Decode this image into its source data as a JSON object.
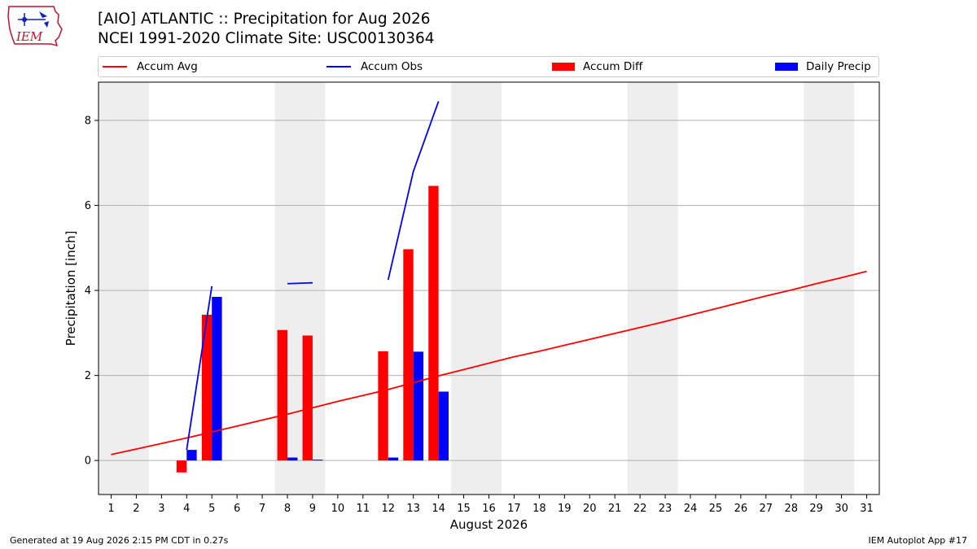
{
  "logo": {
    "text": "IEM"
  },
  "title_line1": "[AIO] ATLANTIC :: Precipitation for Aug 2026",
  "title_line2": "NCEI 1991-2020 Climate Site: USC00130364",
  "footer_left": "Generated at 19 Aug 2026 2:15 PM CDT in 0.27s",
  "footer_right": "IEM Autoplot App #17",
  "chart_data": {
    "type": "bar",
    "xlabel": "August 2026",
    "ylabel": "Precipitation [inch]",
    "xlim": [
      0.5,
      31.5
    ],
    "ylim": [
      -0.8,
      8.9
    ],
    "yticks": [
      0,
      2,
      4,
      6,
      8
    ],
    "x_ticks": [
      "1",
      "2",
      "3",
      "4",
      "5",
      "6",
      "7",
      "8",
      "9",
      "10",
      "11",
      "12",
      "13",
      "14",
      "15",
      "16",
      "17",
      "18",
      "19",
      "20",
      "21",
      "22",
      "23",
      "24",
      "25",
      "26",
      "27",
      "28",
      "29",
      "30",
      "31"
    ],
    "grid": "horizontal",
    "weekend_shading_days": [
      [
        1,
        2
      ],
      [
        8,
        9
      ],
      [
        15,
        16
      ],
      [
        22,
        23
      ],
      [
        29,
        30
      ]
    ],
    "legend_position": "top",
    "colors": {
      "accum_avg": "#ff0000",
      "accum_obs": "#0000ff",
      "accum_diff": "#ff0000",
      "daily_precip": "#0000ff",
      "weekend": "#eeeeee",
      "grid": "#b0b0b0"
    },
    "series": [
      {
        "name": "Accum Avg",
        "kind": "line",
        "x": [
          1,
          2,
          3,
          4,
          5,
          6,
          7,
          8,
          9,
          10,
          11,
          12,
          13,
          14,
          15,
          16,
          17,
          18,
          19,
          20,
          21,
          22,
          23,
          24,
          25,
          26,
          27,
          28,
          29,
          30,
          31
        ],
        "values": [
          0.14,
          0.27,
          0.4,
          0.53,
          0.67,
          0.81,
          0.95,
          1.09,
          1.24,
          1.39,
          1.53,
          1.67,
          1.83,
          1.99,
          2.14,
          2.29,
          2.44,
          2.57,
          2.71,
          2.85,
          2.99,
          3.13,
          3.27,
          3.42,
          3.57,
          3.72,
          3.87,
          4.01,
          4.16,
          4.3,
          4.45
        ]
      },
      {
        "name": "Accum Obs",
        "kind": "line",
        "segments": [
          {
            "x": [
              4,
              5
            ],
            "values": [
              0.25,
              4.1
            ]
          },
          {
            "x": [
              8,
              9
            ],
            "values": [
              4.16,
              4.18
            ]
          },
          {
            "x": [
              12,
              13,
              14
            ],
            "values": [
              4.25,
              6.8,
              8.45
            ]
          }
        ]
      },
      {
        "name": "Accum Diff",
        "kind": "bar",
        "x": [
          4,
          5,
          8,
          9,
          12,
          13,
          14
        ],
        "values": [
          -0.28,
          3.43,
          3.07,
          2.94,
          2.57,
          4.97,
          6.46
        ]
      },
      {
        "name": "Daily Precip",
        "kind": "bar",
        "x": [
          4,
          5,
          8,
          9,
          12,
          13,
          14
        ],
        "values": [
          0.25,
          3.85,
          0.07,
          0.02,
          0.07,
          2.56,
          1.62
        ]
      }
    ]
  }
}
